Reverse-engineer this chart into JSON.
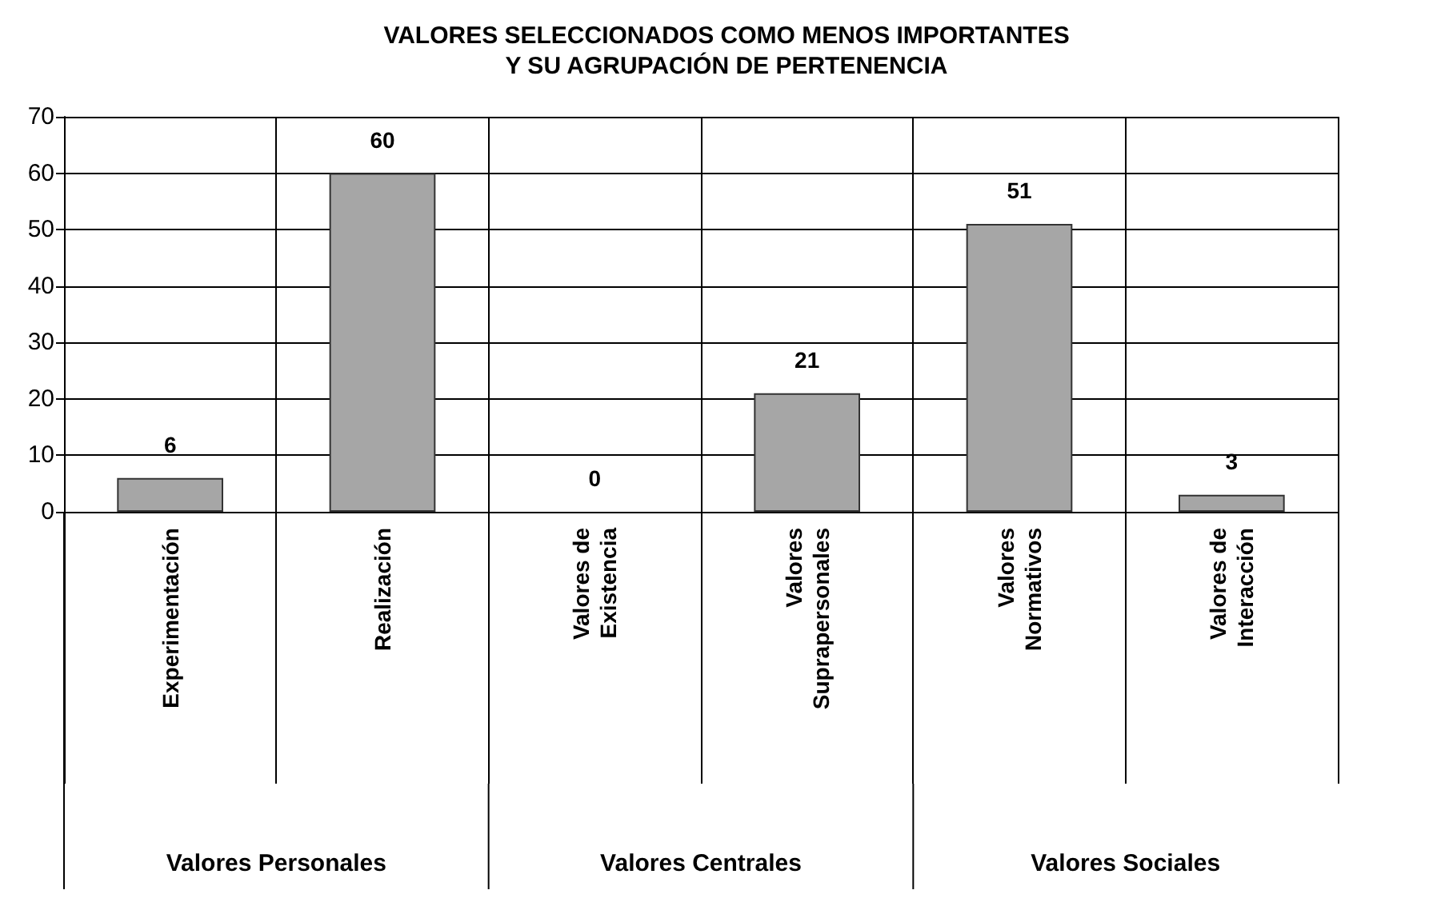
{
  "chart_data": {
    "type": "bar",
    "title": "VALORES SELECCIONADOS COMO MENOS IMPORTANTES\nY SU AGRUPACIÓN DE PERTENENCIA",
    "categories": [
      "Experimentación",
      "Realización",
      "Valores de Existencia",
      "Valores Suprapersonales",
      "Valores Normativos",
      "Valores de Interacción"
    ],
    "values": [
      6,
      60,
      0,
      21,
      51,
      3
    ],
    "color": "#a6a6a6",
    "ylim": [
      0,
      70
    ],
    "yticks": [
      0,
      10,
      20,
      30,
      40,
      50,
      60,
      70
    ],
    "grid": true,
    "data_labels": true,
    "annotations": [
      "Valores Personales",
      "Valores Centrales",
      "Valores Sociales"
    ]
  }
}
